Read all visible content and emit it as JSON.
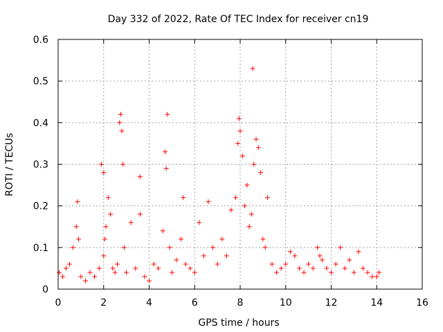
{
  "chart_data": {
    "type": "scatter",
    "title": "Day 332 of 2022, Rate Of TEC Index for receiver cn19",
    "xlabel": "GPS time / hours",
    "ylabel": "ROTI / TECUs",
    "xlim": [
      0,
      16
    ],
    "ylim": [
      0,
      0.6
    ],
    "x_ticks": [
      "0",
      "2",
      "4",
      "6",
      "8",
      "10",
      "12",
      "14",
      "16"
    ],
    "y_ticks": [
      "0",
      "0.1",
      "0.2",
      "0.3",
      "0.4",
      "0.5",
      "0.6"
    ],
    "grid": true,
    "marker": "plus",
    "color": "#ff0000",
    "series": [
      {
        "x": [
          0.05,
          0.2,
          0.35,
          0.5,
          0.65,
          0.8,
          0.85,
          0.9,
          1.0,
          1.2,
          1.4,
          1.6,
          1.8,
          1.9,
          2.0,
          2.0,
          2.05,
          2.1,
          2.2,
          2.3,
          2.4,
          2.5,
          2.6,
          2.7,
          2.75,
          2.8,
          2.85,
          2.9,
          3.0,
          3.2,
          3.4,
          3.6,
          3.6,
          3.8,
          4.0,
          4.2,
          4.4,
          4.6,
          4.7,
          4.75,
          4.8,
          4.9,
          5.0,
          5.2,
          5.4,
          5.5,
          5.6,
          5.8,
          6.0,
          6.2,
          6.4,
          6.6,
          6.8,
          7.0,
          7.2,
          7.4,
          7.6,
          7.8,
          7.9,
          7.95,
          8.0,
          8.1,
          8.2,
          8.3,
          8.4,
          8.5,
          8.55,
          8.6,
          8.7,
          8.8,
          8.9,
          9.0,
          9.1,
          9.2,
          9.4,
          9.6,
          9.8,
          10.0,
          10.2,
          10.4,
          10.6,
          10.8,
          11.0,
          11.2,
          11.4,
          11.5,
          11.6,
          11.8,
          12.0,
          12.2,
          12.4,
          12.6,
          12.8,
          13.0,
          13.2,
          13.4,
          13.6,
          13.8,
          14.0,
          14.1
        ],
        "y": [
          0.04,
          0.03,
          0.05,
          0.06,
          0.1,
          0.15,
          0.21,
          0.12,
          0.03,
          0.02,
          0.04,
          0.03,
          0.05,
          0.3,
          0.28,
          0.08,
          0.12,
          0.15,
          0.22,
          0.18,
          0.05,
          0.04,
          0.06,
          0.4,
          0.42,
          0.38,
          0.3,
          0.1,
          0.04,
          0.16,
          0.05,
          0.27,
          0.18,
          0.03,
          0.02,
          0.06,
          0.05,
          0.14,
          0.33,
          0.29,
          0.42,
          0.1,
          0.04,
          0.07,
          0.12,
          0.22,
          0.06,
          0.05,
          0.04,
          0.16,
          0.08,
          0.21,
          0.1,
          0.06,
          0.12,
          0.08,
          0.19,
          0.22,
          0.35,
          0.41,
          0.38,
          0.32,
          0.2,
          0.25,
          0.15,
          0.18,
          0.53,
          0.3,
          0.36,
          0.34,
          0.28,
          0.12,
          0.1,
          0.22,
          0.06,
          0.04,
          0.05,
          0.06,
          0.09,
          0.08,
          0.05,
          0.04,
          0.06,
          0.05,
          0.1,
          0.08,
          0.07,
          0.05,
          0.04,
          0.06,
          0.1,
          0.05,
          0.07,
          0.04,
          0.09,
          0.05,
          0.04,
          0.03,
          0.03,
          0.04
        ]
      }
    ]
  }
}
